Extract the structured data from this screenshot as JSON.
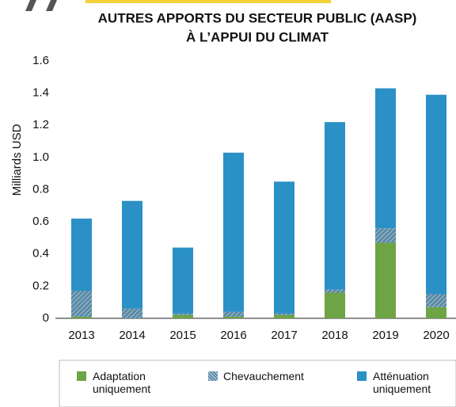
{
  "chart_data": {
    "type": "stacked_bar",
    "title": [
      "AUTRES APPORTS DU SECTEUR PUBLIC (AASP)",
      "À L’APPUI DU CLIMAT"
    ],
    "y_label": "Milliards USD",
    "categories": [
      "2013",
      "2014",
      "2015",
      "2016",
      "2017",
      "2018",
      "2019",
      "2020"
    ],
    "series": [
      {
        "name": "Adaptation uniquement",
        "color": "#6ea445",
        "values": [
          0.01,
          0.0,
          0.02,
          0.01,
          0.02,
          0.16,
          0.47,
          0.07
        ]
      },
      {
        "name": "Chevauchement",
        "color": "#5a8aa6",
        "hatch": true,
        "values": [
          0.16,
          0.06,
          0.01,
          0.03,
          0.01,
          0.02,
          0.09,
          0.08
        ]
      },
      {
        "name": "Atténuation uniquement",
        "color": "#2b90c5",
        "values": [
          0.45,
          0.67,
          0.41,
          0.99,
          0.82,
          1.04,
          0.87,
          1.24
        ]
      }
    ],
    "ylim": [
      0,
      1.6
    ],
    "yticks": [
      0,
      0.2,
      0.4,
      0.6,
      0.8,
      {
        "value": 1,
        "label": "1.0"
      },
      1.2,
      1.4,
      1.6
    ],
    "grid": false
  }
}
